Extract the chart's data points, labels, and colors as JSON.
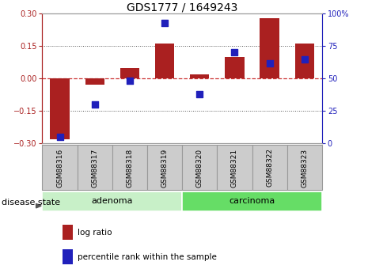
{
  "title": "GDS1777 / 1649243",
  "samples": [
    "GSM88316",
    "GSM88317",
    "GSM88318",
    "GSM88319",
    "GSM88320",
    "GSM88321",
    "GSM88322",
    "GSM88323"
  ],
  "log_ratio": [
    -0.28,
    -0.03,
    0.05,
    0.16,
    0.02,
    0.1,
    0.28,
    0.16
  ],
  "percentile": [
    5,
    30,
    48,
    93,
    38,
    70,
    62,
    65
  ],
  "groups": [
    {
      "label": "adenoma",
      "start": 0,
      "end": 4,
      "color": "#c8f0c8"
    },
    {
      "label": "carcinoma",
      "start": 4,
      "end": 8,
      "color": "#66dd66"
    }
  ],
  "group_label_prefix": "disease state",
  "ylim_left": [
    -0.3,
    0.3
  ],
  "ylim_right": [
    0,
    100
  ],
  "yticks_left": [
    -0.3,
    -0.15,
    0.0,
    0.15,
    0.3
  ],
  "yticks_right": [
    0,
    25,
    50,
    75,
    100
  ],
  "bar_color": "#aa2020",
  "dot_color": "#2020bb",
  "zero_line_color": "#cc3333",
  "hline_color": "#555555",
  "bar_width": 0.55,
  "dot_size": 28,
  "title_fontsize": 10,
  "tick_fontsize": 7,
  "sample_fontsize": 6.5,
  "label_fontsize": 8,
  "legend_fontsize": 7.5,
  "label_box_color": "#cccccc",
  "label_box_edge": "#999999"
}
